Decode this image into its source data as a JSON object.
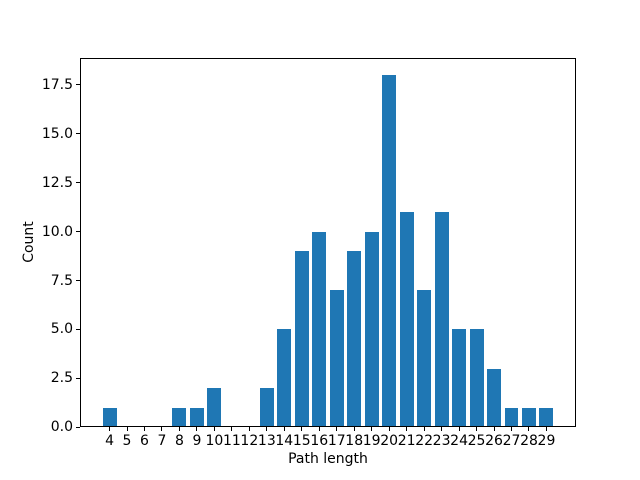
{
  "figure": {
    "background_color": "#ffffff",
    "bar_color": "#1f77b4",
    "spine_color": "#000000",
    "tick_color": "#000000",
    "text_color": "#000000"
  },
  "chart_data": {
    "type": "bar",
    "title": "",
    "xlabel": "Path length",
    "ylabel": "Count",
    "categories": [
      4,
      5,
      6,
      7,
      8,
      9,
      10,
      11,
      12,
      13,
      14,
      15,
      16,
      17,
      18,
      19,
      20,
      21,
      22,
      23,
      24,
      25,
      26,
      27,
      28,
      29
    ],
    "values": [
      1,
      0,
      0,
      0,
      1,
      1,
      2,
      0,
      0,
      2,
      5,
      9,
      10,
      7,
      9,
      10,
      18,
      11,
      7,
      11,
      5,
      5,
      3,
      1,
      1,
      1
    ],
    "xtick_labels": [
      "4",
      "5",
      "6",
      "7",
      "8",
      "9",
      "10",
      "11",
      "12",
      "13",
      "14",
      "15",
      "16",
      "17",
      "18",
      "19",
      "20",
      "21",
      "22",
      "23",
      "24",
      "25",
      "26",
      "27",
      "28",
      "29"
    ],
    "yticks": [
      0.0,
      2.5,
      5.0,
      7.5,
      10.0,
      12.5,
      15.0,
      17.5
    ],
    "ytick_labels": [
      "0.0",
      "2.5",
      "5.0",
      "7.5",
      "10.0",
      "12.5",
      "15.0",
      "17.5"
    ],
    "xlim": [
      2.31,
      30.69
    ],
    "ylim": [
      0,
      18.9
    ],
    "bar_width": 0.8,
    "grid": false,
    "legend": null
  }
}
